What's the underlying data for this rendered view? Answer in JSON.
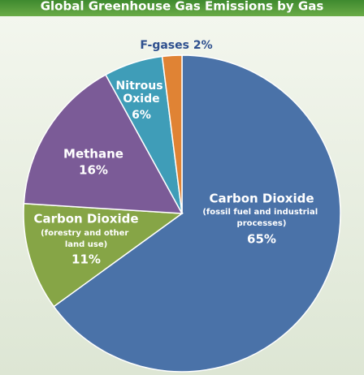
{
  "chart_data": {
    "type": "pie",
    "title": "Global Greenhouse Gas Emissions by Gas",
    "categories": [
      "Carbon Dioxide",
      "Carbon Dioxide",
      "Methane",
      "Nitrous Oxide",
      "F-gases"
    ],
    "descriptions": [
      "(fossil fuel and industrial processes)",
      "(forestry and other land use)",
      null,
      null,
      null
    ],
    "values": [
      65,
      11,
      16,
      6,
      2
    ],
    "value_labels": [
      "65%",
      "11%",
      "16%",
      "6%",
      "2%"
    ],
    "colors": [
      "#4a72a8",
      "#86a546",
      "#7b5b97",
      "#3f9db8",
      "#e08334"
    ]
  }
}
